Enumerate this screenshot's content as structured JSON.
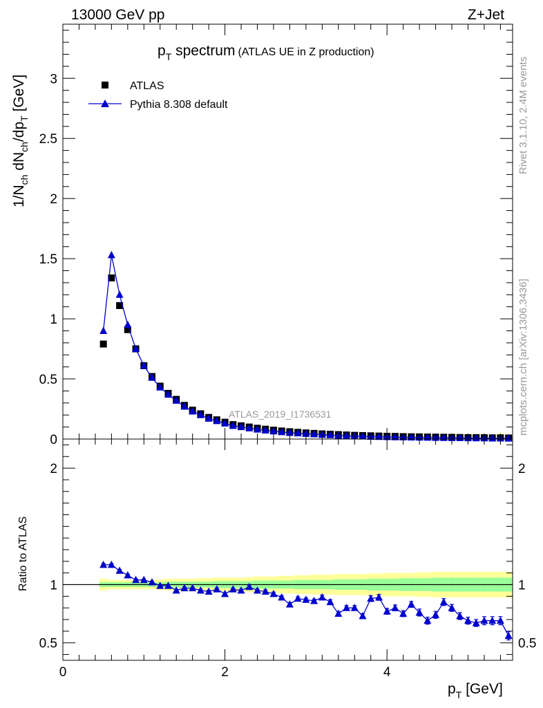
{
  "header": {
    "energy_label": "13000 GeV pp",
    "process_label": "Z+Jet"
  },
  "side_labels": {
    "rivet": "Rivet 3.1.10,  2.4M events",
    "mcplots": "mcplots.cern.ch [arXiv:1306.3436]"
  },
  "chart_data": [
    {
      "type": "scatter",
      "title_main": "p",
      "title_sub": "T",
      "title_rest": " spectrum",
      "title_paren": "(ATLAS UE in Z production)",
      "ylabel": "1/N_ch dN_ch/dp_T [GeV]",
      "analysis_id": "ATLAS_2019_I1736531",
      "xlim": [
        0,
        5.55
      ],
      "ylim": [
        0,
        3.45
      ],
      "y_ticks": [
        0,
        0.5,
        1,
        1.5,
        2,
        2.5,
        3
      ],
      "y_tick_labels": [
        "0",
        "0.5",
        "1",
        "1.5",
        "2",
        "2.5",
        "3"
      ],
      "legend": {
        "placement": "top-left",
        "entries": [
          "ATLAS",
          "Pythia 8.308 default"
        ]
      },
      "x": [
        0.5,
        0.6,
        0.7,
        0.8,
        0.9,
        1.0,
        1.1,
        1.2,
        1.3,
        1.4,
        1.5,
        1.6,
        1.7,
        1.8,
        1.9,
        2.0,
        2.1,
        2.2,
        2.3,
        2.4,
        2.5,
        2.6,
        2.7,
        2.8,
        2.9,
        3.0,
        3.1,
        3.2,
        3.3,
        3.4,
        3.5,
        3.6,
        3.7,
        3.8,
        3.9,
        4.0,
        4.1,
        4.2,
        4.3,
        4.4,
        4.5,
        4.6,
        4.7,
        4.8,
        4.9,
        5.0,
        5.1,
        5.2,
        5.3,
        5.4,
        5.5
      ],
      "series": [
        {
          "name": "ATLAS",
          "color": "#000000",
          "marker": "square",
          "values": [
            0.79,
            1.34,
            1.11,
            0.91,
            0.75,
            0.61,
            0.52,
            0.44,
            0.38,
            0.33,
            0.28,
            0.24,
            0.21,
            0.18,
            0.16,
            0.14,
            0.12,
            0.11,
            0.1,
            0.09,
            0.082,
            0.074,
            0.067,
            0.061,
            0.056,
            0.051,
            0.047,
            0.043,
            0.04,
            0.037,
            0.034,
            0.031,
            0.029,
            0.027,
            0.025,
            0.023,
            0.022,
            0.02,
            0.019,
            0.018,
            0.017,
            0.016,
            0.015,
            0.014,
            0.013,
            0.012,
            0.012,
            0.011,
            0.01,
            0.01,
            0.009
          ]
        },
        {
          "name": "Pythia 8.308 default",
          "color": "#0000cc",
          "marker": "triangle",
          "values": [
            0.9,
            1.53,
            1.2,
            0.95,
            0.75,
            0.61,
            0.51,
            0.43,
            0.37,
            0.32,
            0.27,
            0.23,
            0.2,
            0.17,
            0.15,
            0.13,
            0.11,
            0.1,
            0.09,
            0.08,
            0.072,
            0.065,
            0.058,
            0.052,
            0.048,
            0.044,
            0.04,
            0.036,
            0.033,
            0.029,
            0.026,
            0.024,
            0.022,
            0.02,
            0.019,
            0.017,
            0.016,
            0.015,
            0.014,
            0.013,
            0.012,
            0.011,
            0.01,
            0.009,
            0.009,
            0.008,
            0.007,
            0.007,
            0.006,
            0.006,
            0.005
          ]
        }
      ]
    },
    {
      "type": "scatter",
      "ylabel": "Ratio to ATLAS",
      "xlabel_main": "p",
      "xlabel_sub": "T",
      "xlabel_rest": " [GeV]",
      "xlim": [
        0,
        5.55
      ],
      "ylim": [
        0.35,
        2.25
      ],
      "x_ticks": [
        0,
        2,
        4
      ],
      "x_tick_labels": [
        "0",
        "2",
        "4"
      ],
      "y_ticks": [
        0.5,
        1,
        2
      ],
      "y_tick_labels": [
        "0.5",
        "1",
        "2"
      ],
      "x": [
        0.5,
        0.6,
        0.7,
        0.8,
        0.9,
        1.0,
        1.1,
        1.2,
        1.3,
        1.4,
        1.5,
        1.6,
        1.7,
        1.8,
        1.9,
        2.0,
        2.1,
        2.2,
        2.3,
        2.4,
        2.5,
        2.6,
        2.7,
        2.8,
        2.9,
        3.0,
        3.1,
        3.2,
        3.3,
        3.4,
        3.5,
        3.6,
        3.7,
        3.8,
        3.9,
        4.0,
        4.1,
        4.2,
        4.3,
        4.4,
        4.5,
        4.6,
        4.7,
        4.8,
        4.9,
        5.0,
        5.1,
        5.2,
        5.3,
        5.4,
        5.5
      ],
      "band_stat": [
        0.02,
        0.02,
        0.02,
        0.02,
        0.02,
        0.02,
        0.02,
        0.02,
        0.025,
        0.025,
        0.025,
        0.025,
        0.025,
        0.025,
        0.03,
        0.03,
        0.03,
        0.03,
        0.03,
        0.035,
        0.035,
        0.035,
        0.035,
        0.035,
        0.04,
        0.04,
        0.04,
        0.04,
        0.04,
        0.045,
        0.045,
        0.045,
        0.045,
        0.05,
        0.05,
        0.05,
        0.05,
        0.055,
        0.055,
        0.055,
        0.055,
        0.06,
        0.06,
        0.06,
        0.06,
        0.06,
        0.06,
        0.06,
        0.06,
        0.06,
        0.06
      ],
      "band_total": [
        0.05,
        0.04,
        0.04,
        0.04,
        0.04,
        0.04,
        0.04,
        0.045,
        0.05,
        0.05,
        0.05,
        0.05,
        0.055,
        0.055,
        0.06,
        0.06,
        0.06,
        0.06,
        0.065,
        0.07,
        0.07,
        0.07,
        0.075,
        0.075,
        0.08,
        0.08,
        0.085,
        0.085,
        0.085,
        0.09,
        0.09,
        0.09,
        0.09,
        0.095,
        0.095,
        0.1,
        0.1,
        0.1,
        0.1,
        0.105,
        0.105,
        0.11,
        0.11,
        0.11,
        0.11,
        0.11,
        0.11,
        0.11,
        0.11,
        0.11,
        0.11
      ],
      "series": [
        {
          "name": "Pythia 8.308 default",
          "color": "#0000cc",
          "marker": "triangle",
          "values": [
            1.17,
            1.17,
            1.12,
            1.08,
            1.04,
            1.04,
            1.02,
            0.99,
            0.99,
            0.95,
            0.97,
            0.97,
            0.95,
            0.94,
            0.96,
            0.92,
            0.96,
            0.95,
            0.98,
            0.95,
            0.94,
            0.92,
            0.89,
            0.83,
            0.88,
            0.87,
            0.86,
            0.89,
            0.85,
            0.75,
            0.8,
            0.8,
            0.73,
            0.88,
            0.89,
            0.77,
            0.8,
            0.75,
            0.83,
            0.76,
            0.69,
            0.74,
            0.85,
            0.8,
            0.73,
            0.69,
            0.67,
            0.69,
            0.69,
            0.69,
            0.56
          ],
          "errors": [
            0.01,
            0.01,
            0.01,
            0.01,
            0.01,
            0.01,
            0.01,
            0.01,
            0.01,
            0.01,
            0.01,
            0.01,
            0.01,
            0.01,
            0.01,
            0.01,
            0.01,
            0.01,
            0.01,
            0.01,
            0.015,
            0.015,
            0.015,
            0.015,
            0.015,
            0.015,
            0.015,
            0.02,
            0.02,
            0.02,
            0.02,
            0.02,
            0.02,
            0.025,
            0.025,
            0.025,
            0.025,
            0.025,
            0.025,
            0.03,
            0.03,
            0.03,
            0.03,
            0.03,
            0.03,
            0.03,
            0.03,
            0.035,
            0.035,
            0.035,
            0.035
          ]
        }
      ]
    }
  ]
}
